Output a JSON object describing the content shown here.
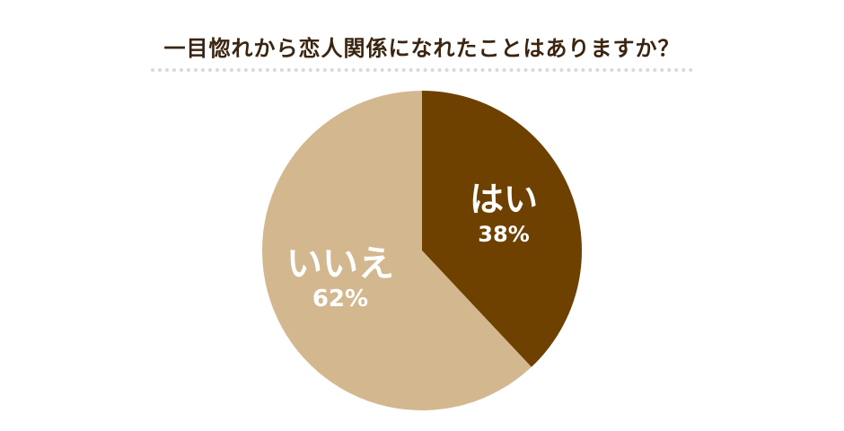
{
  "chart_data": {
    "type": "pie",
    "title": "一目惚れから恋人関係になれたことはありますか？",
    "slices": [
      {
        "label": "はい",
        "value": 38,
        "value_label": "38%",
        "color": "#6f4100"
      },
      {
        "label": "いいえ",
        "value": 62,
        "value_label": "62%",
        "color": "#d3b88f"
      }
    ],
    "start_angle": "12 o'clock",
    "direction": "clockwise",
    "legend": "none"
  }
}
